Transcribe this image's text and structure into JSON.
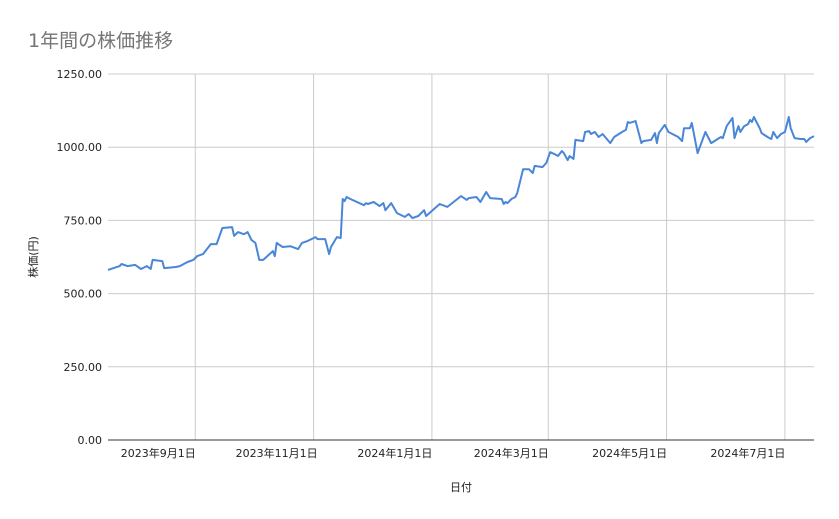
{
  "chart_data": {
    "type": "line",
    "title": "1年間の株価推移",
    "xlabel": "日付",
    "ylabel": "株価(円)",
    "xlim": [
      "2023-07-18",
      "2024-07-16"
    ],
    "ylim": [
      0,
      1250
    ],
    "grid": true,
    "legend": "none",
    "line_color": "#4a86d8",
    "y_ticks": [
      0,
      250,
      500,
      750,
      1000,
      1250
    ],
    "y_tick_labels": [
      "0.00",
      "250.00",
      "500.00",
      "750.00",
      "1000.00",
      "1250.00"
    ],
    "x_ticks": [
      "2023-09-01",
      "2023-11-01",
      "2024-01-01",
      "2024-03-01",
      "2024-05-01",
      "2024-07-01"
    ],
    "x_tick_labels": [
      "2023年9月1日",
      "2023年11月1日",
      "2024年1月1日",
      "2024年3月1日",
      "2024年5月1日",
      "2024年7月1日"
    ],
    "series": [
      {
        "points": [
          [
            "2023-07-18",
            581
          ],
          [
            "2023-07-24",
            594
          ],
          [
            "2023-07-25",
            601
          ],
          [
            "2023-07-28",
            594
          ],
          [
            "2023-08-01",
            598
          ],
          [
            "2023-08-04",
            584
          ],
          [
            "2023-08-07",
            594
          ],
          [
            "2023-08-09",
            584
          ],
          [
            "2023-08-10",
            615
          ],
          [
            "2023-08-15",
            611
          ],
          [
            "2023-08-16",
            587
          ],
          [
            "2023-08-22",
            591
          ],
          [
            "2023-08-24",
            594
          ],
          [
            "2023-08-28",
            608
          ],
          [
            "2023-08-31",
            615
          ],
          [
            "2023-09-02",
            628
          ],
          [
            "2023-09-05",
            635
          ],
          [
            "2023-09-09",
            669
          ],
          [
            "2023-09-12",
            669
          ],
          [
            "2023-09-15",
            724
          ],
          [
            "2023-09-20",
            727
          ],
          [
            "2023-09-21",
            697
          ],
          [
            "2023-09-23",
            710
          ],
          [
            "2023-09-26",
            703
          ],
          [
            "2023-09-28",
            710
          ],
          [
            "2023-09-30",
            683
          ],
          [
            "2023-10-02",
            673
          ],
          [
            "2023-10-04",
            615
          ],
          [
            "2023-10-06",
            615
          ],
          [
            "2023-10-11",
            645
          ],
          [
            "2023-10-12",
            628
          ],
          [
            "2023-10-13",
            673
          ],
          [
            "2023-10-16",
            659
          ],
          [
            "2023-10-20",
            662
          ],
          [
            "2023-10-24",
            652
          ],
          [
            "2023-10-26",
            673
          ],
          [
            "2023-10-29",
            680
          ],
          [
            "2023-11-02",
            693
          ],
          [
            "2023-11-03",
            686
          ],
          [
            "2023-11-07",
            686
          ],
          [
            "2023-11-09",
            635
          ],
          [
            "2023-11-10",
            659
          ],
          [
            "2023-11-13",
            693
          ],
          [
            "2023-11-15",
            690
          ],
          [
            "2023-11-16",
            823
          ],
          [
            "2023-11-17",
            816
          ],
          [
            "2023-11-18",
            830
          ],
          [
            "2023-11-20",
            823
          ],
          [
            "2023-11-27",
            802
          ],
          [
            "2023-11-28",
            809
          ],
          [
            "2023-11-29",
            806
          ],
          [
            "2023-12-02",
            813
          ],
          [
            "2023-12-05",
            799
          ],
          [
            "2023-12-07",
            809
          ],
          [
            "2023-12-08",
            785
          ],
          [
            "2023-12-11",
            809
          ],
          [
            "2023-12-14",
            775
          ],
          [
            "2023-12-18",
            762
          ],
          [
            "2023-12-20",
            772
          ],
          [
            "2023-12-22",
            758
          ],
          [
            "2023-12-25",
            765
          ],
          [
            "2023-12-28",
            785
          ],
          [
            "2023-12-29",
            765
          ],
          [
            "2024-01-05",
            806
          ],
          [
            "2024-01-09",
            796
          ],
          [
            "2024-01-16",
            833
          ],
          [
            "2024-01-19",
            820
          ],
          [
            "2024-01-20",
            826
          ],
          [
            "2024-01-24",
            830
          ],
          [
            "2024-01-26",
            813
          ],
          [
            "2024-01-29",
            847
          ],
          [
            "2024-01-31",
            826
          ],
          [
            "2024-02-06",
            823
          ],
          [
            "2024-02-07",
            806
          ],
          [
            "2024-02-08",
            813
          ],
          [
            "2024-02-09",
            809
          ],
          [
            "2024-02-11",
            823
          ],
          [
            "2024-02-13",
            830
          ],
          [
            "2024-02-14",
            843
          ],
          [
            "2024-02-17",
            925
          ],
          [
            "2024-02-20",
            925
          ],
          [
            "2024-02-22",
            912
          ],
          [
            "2024-02-23",
            936
          ],
          [
            "2024-02-27",
            932
          ],
          [
            "2024-02-29",
            946
          ],
          [
            "2024-03-02",
            983
          ],
          [
            "2024-03-04",
            977
          ],
          [
            "2024-03-06",
            970
          ],
          [
            "2024-03-08",
            987
          ],
          [
            "2024-03-09",
            980
          ],
          [
            "2024-03-11",
            956
          ],
          [
            "2024-03-12",
            970
          ],
          [
            "2024-03-14",
            960
          ],
          [
            "2024-03-15",
            1025
          ],
          [
            "2024-03-19",
            1021
          ],
          [
            "2024-03-20",
            1052
          ],
          [
            "2024-03-22",
            1055
          ],
          [
            "2024-03-23",
            1045
          ],
          [
            "2024-03-25",
            1052
          ],
          [
            "2024-03-27",
            1035
          ],
          [
            "2024-03-29",
            1045
          ],
          [
            "2024-04-02",
            1014
          ],
          [
            "2024-04-04",
            1035
          ],
          [
            "2024-04-08",
            1052
          ],
          [
            "2024-04-10",
            1059
          ],
          [
            "2024-04-11",
            1086
          ],
          [
            "2024-04-12",
            1083
          ],
          [
            "2024-04-15",
            1089
          ],
          [
            "2024-04-18",
            1014
          ],
          [
            "2024-04-19",
            1021
          ],
          [
            "2024-04-23",
            1025
          ],
          [
            "2024-04-25",
            1048
          ],
          [
            "2024-04-26",
            1014
          ],
          [
            "2024-04-27",
            1048
          ],
          [
            "2024-04-30",
            1076
          ],
          [
            "2024-05-02",
            1052
          ],
          [
            "2024-05-07",
            1035
          ],
          [
            "2024-05-09",
            1021
          ],
          [
            "2024-05-10",
            1065
          ],
          [
            "2024-05-13",
            1065
          ],
          [
            "2024-05-14",
            1083
          ],
          [
            "2024-05-17",
            980
          ],
          [
            "2024-05-21",
            1052
          ],
          [
            "2024-05-24",
            1014
          ],
          [
            "2024-05-29",
            1035
          ],
          [
            "2024-05-30",
            1031
          ],
          [
            "2024-06-01",
            1072
          ],
          [
            "2024-06-04",
            1100
          ],
          [
            "2024-06-05",
            1031
          ],
          [
            "2024-06-07",
            1072
          ],
          [
            "2024-06-08",
            1052
          ],
          [
            "2024-06-10",
            1072
          ],
          [
            "2024-06-12",
            1079
          ],
          [
            "2024-06-13",
            1093
          ],
          [
            "2024-06-14",
            1086
          ],
          [
            "2024-06-15",
            1103
          ],
          [
            "2024-06-18",
            1065
          ],
          [
            "2024-06-19",
            1048
          ],
          [
            "2024-06-22",
            1035
          ],
          [
            "2024-06-24",
            1028
          ],
          [
            "2024-06-25",
            1052
          ],
          [
            "2024-06-27",
            1031
          ],
          [
            "2024-06-29",
            1045
          ],
          [
            "2024-07-01",
            1052
          ],
          [
            "2024-07-03",
            1103
          ],
          [
            "2024-07-04",
            1065
          ],
          [
            "2024-07-06",
            1031
          ],
          [
            "2024-07-09",
            1028
          ],
          [
            "2024-07-11",
            1028
          ],
          [
            "2024-07-12",
            1018
          ],
          [
            "2024-07-14",
            1031
          ],
          [
            "2024-07-16",
            1038
          ]
        ]
      }
    ]
  }
}
